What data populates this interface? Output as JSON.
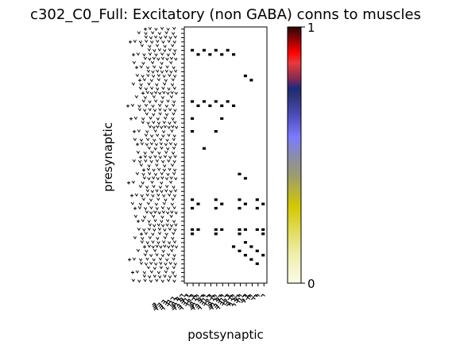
{
  "chart_data": {
    "type": "heatmap",
    "title": "c302_C0_Full: Excitatory (non GABA) conns to muscles",
    "xlabel": "postsynaptic",
    "ylabel": "presynaptic",
    "n_rows": 60,
    "n_cols": 14,
    "colorbar": {
      "min": 0,
      "max": 1,
      "tick_labels": [
        "0",
        "1"
      ],
      "colors": [
        "#fbfbe8",
        "#d4c800",
        "#8f8f8f",
        "#7b7bff",
        "#2a3070",
        "#e83a3a",
        "#ff0000",
        "#3a0a0a"
      ]
    },
    "cell_color": "#000000",
    "grid": false,
    "nonzero_cells": [
      [
        5,
        1
      ],
      [
        5,
        3
      ],
      [
        6,
        2
      ],
      [
        6,
        4
      ],
      [
        5,
        5
      ],
      [
        6,
        6
      ],
      [
        5,
        7
      ],
      [
        6,
        8
      ],
      [
        11,
        10
      ],
      [
        12,
        11
      ],
      [
        17,
        1
      ],
      [
        18,
        2
      ],
      [
        17,
        3
      ],
      [
        18,
        4
      ],
      [
        17,
        5
      ],
      [
        18,
        6
      ],
      [
        17,
        7
      ],
      [
        18,
        8
      ],
      [
        21,
        1
      ],
      [
        21,
        6
      ],
      [
        24,
        1
      ],
      [
        24,
        5
      ],
      [
        28,
        3
      ],
      [
        34,
        9
      ],
      [
        35,
        10
      ],
      [
        40,
        1
      ],
      [
        40,
        5
      ],
      [
        40,
        9
      ],
      [
        40,
        12
      ],
      [
        41,
        2
      ],
      [
        41,
        6
      ],
      [
        41,
        10
      ],
      [
        41,
        13
      ],
      [
        42,
        1
      ],
      [
        42,
        5
      ],
      [
        42,
        9
      ],
      [
        42,
        12
      ],
      [
        47,
        1
      ],
      [
        47,
        2
      ],
      [
        47,
        5
      ],
      [
        47,
        6
      ],
      [
        47,
        9
      ],
      [
        47,
        10
      ],
      [
        47,
        12
      ],
      [
        47,
        13
      ],
      [
        48,
        1
      ],
      [
        48,
        5
      ],
      [
        48,
        9
      ],
      [
        48,
        13
      ],
      [
        50,
        10
      ],
      [
        51,
        11
      ],
      [
        52,
        12
      ],
      [
        53,
        13
      ],
      [
        51,
        8
      ],
      [
        52,
        9
      ],
      [
        53,
        10
      ],
      [
        54,
        11
      ],
      [
        55,
        12
      ]
    ]
  }
}
